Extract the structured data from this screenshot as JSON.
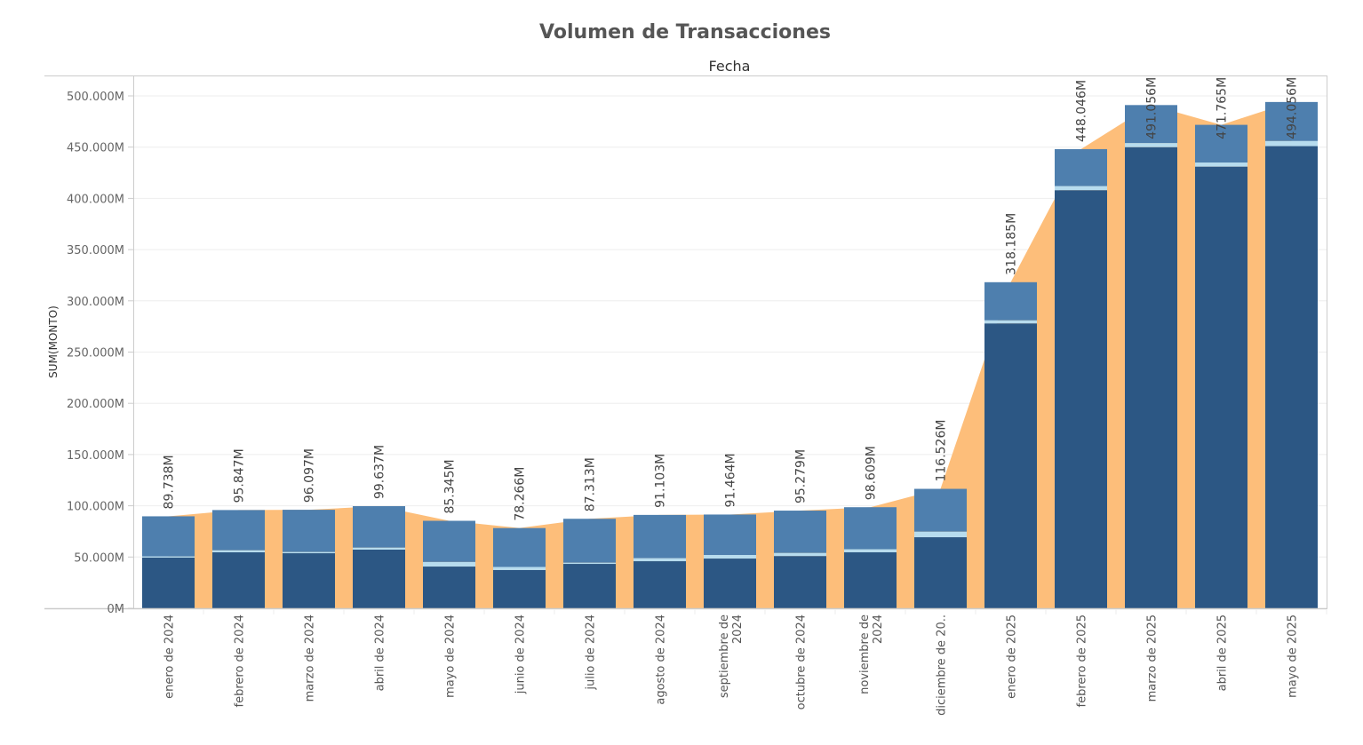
{
  "chart_data": {
    "type": "bar",
    "title": "Volumen de Transacciones",
    "column_header": "Fecha",
    "ylabel": "SUM(MONTO)",
    "ylim": [
      0,
      500
    ],
    "yticks": [
      0,
      50,
      100,
      150,
      200,
      250,
      300,
      350,
      400,
      450,
      500
    ],
    "ytick_labels": [
      "0M",
      "50.000M",
      "100.000M",
      "150.000M",
      "200.000M",
      "250.000M",
      "300.000M",
      "350.000M",
      "400.000M",
      "450.000M",
      "500.000M"
    ],
    "grid": true,
    "categories": [
      [
        "enero de 2024"
      ],
      [
        "febrero de 2024"
      ],
      [
        "marzo de 2024"
      ],
      [
        "abril de 2024"
      ],
      [
        "mayo de 2024"
      ],
      [
        "junio de 2024"
      ],
      [
        "julio de 2024"
      ],
      [
        "agosto de 2024"
      ],
      [
        "septiembre de",
        "2024"
      ],
      [
        "octubre de 2024"
      ],
      [
        "noviembre de",
        "2024"
      ],
      [
        "diciembre de 20.."
      ],
      [
        "enero de 2025"
      ],
      [
        "febrero de 2025"
      ],
      [
        "marzo de 2025"
      ],
      [
        "abril de 2025"
      ],
      [
        "mayo de 2025"
      ]
    ],
    "totals": [
      89.738,
      95.847,
      96.097,
      99.637,
      85.345,
      78.266,
      87.313,
      91.103,
      91.464,
      95.279,
      98.609,
      116.526,
      318.185,
      448.046,
      491.056,
      471.765,
      494.056
    ],
    "total_labels": [
      "89.738M",
      "95.847M",
      "96.097M",
      "99.637M",
      "85.345M",
      "78.266M",
      "87.313M",
      "91.103M",
      "91.464M",
      "95.279M",
      "98.609M",
      "116.526M",
      "318.185M",
      "448.046M",
      "491.056M",
      "471.765M",
      "494.056M"
    ],
    "series": [
      {
        "key": "bottom",
        "color": "#2c5784",
        "values": [
          49.4,
          54.6,
          53.7,
          57.2,
          40.7,
          37.3,
          43.3,
          45.9,
          48.5,
          51.0,
          54.6,
          69.3,
          278,
          408,
          450,
          431,
          451
        ]
      },
      {
        "key": "middle",
        "color": "#b7dcee",
        "values": [
          1.2,
          2,
          1.2,
          2,
          4.5,
          3,
          1.2,
          3,
          3.5,
          3,
          3,
          5.5,
          3,
          4,
          4,
          4,
          5
        ]
      }
    ],
    "top_color": "#4e7fae",
    "area_color": "#fdbe7a",
    "units": "M"
  }
}
